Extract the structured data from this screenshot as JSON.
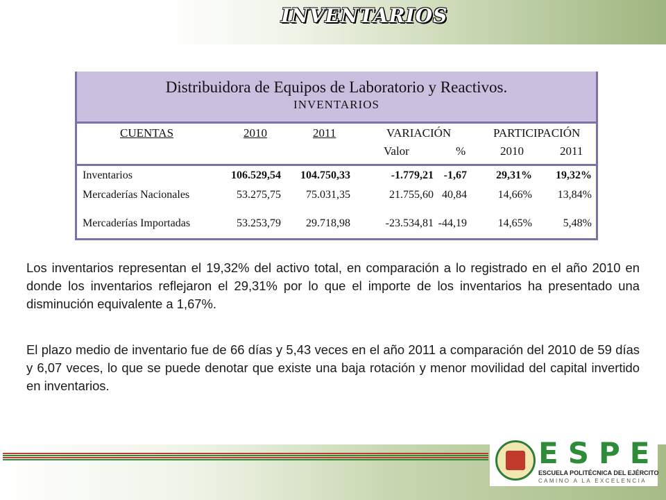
{
  "header": {
    "title": "INVENTARIOS"
  },
  "table": {
    "company": "Distribuidora de Equipos de Laboratorio y Reactivos.",
    "subtitle": "INVENTARIOS",
    "col_cuentas": "CUENTAS",
    "col_2010": "2010",
    "col_2011": "2011",
    "col_variacion": "VARIACIÓN",
    "col_participacion": "PARTICIPACIÓN",
    "sub_valor": "Valor",
    "sub_pct": "%",
    "sub_2010": "2010",
    "sub_2011": "2011",
    "rows": [
      {
        "cuenta": "Inventarios",
        "y2010": "106.529,54",
        "y2011": "104.750,33",
        "valor": "-1.779,21",
        "pct": "-1,67",
        "p2010": "29,31%",
        "p2011": "19,32%"
      },
      {
        "cuenta": "Mercaderías Nacionales",
        "y2010": "53.275,75",
        "y2011": "75.031,35",
        "valor": "21.755,60",
        "pct": "40,84",
        "p2010": "14,66%",
        "p2011": "13,84%"
      },
      {
        "cuenta": "Mercaderías Importadas",
        "y2010": "53.253,79",
        "y2011": "29.718,98",
        "valor": "-23.534,81",
        "pct": "-44,19",
        "p2010": "14,65%",
        "p2011": "5,48%"
      }
    ]
  },
  "paragraphs": [
    "Los inventarios representan el 19,32% del activo total, en comparación a lo registrado en el año 2010 en donde los inventarios reflejaron el 29,31% por lo que el importe de los inventarios ha presentado una disminución equivalente a 1,67%.",
    "El plazo medio de inventario fue de 66 días y 5,43 veces en el año 2011 a comparación del 2010  de 59 días y 6,07 veces, lo que se puede denotar que existe una baja rotación y menor movilidad del capital invertido en inventarios."
  ],
  "logo": {
    "acronym": "ESPE",
    "name": "ESCUELA POLITÉCNICA DEL EJÉRCITO",
    "motto": "CAMINO A LA EXCELENCIA"
  },
  "colors": {
    "table_header": "#c9c0e0",
    "table_border": "#7d72a8",
    "brand_green": "#2e8b3a",
    "stripe_red": "#c0392b"
  }
}
